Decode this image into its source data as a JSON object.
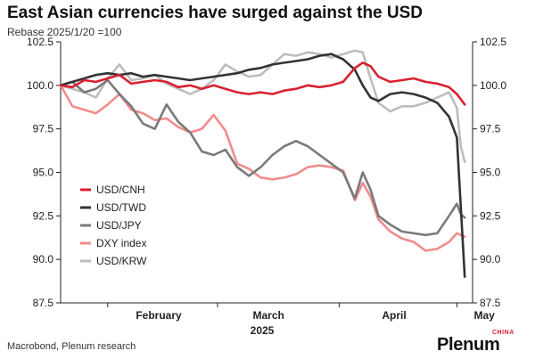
{
  "header": {
    "title": "East Asian currencies have surged against the USD",
    "subtitle": "Rebase 2025/1/20 =100"
  },
  "footer": {
    "source": "Macrobond, Plenum research",
    "logo_text": "Plenum",
    "logo_sup": "CHINA"
  },
  "colors": {
    "USD/CNH": "#d8212f",
    "USD/TWD": "#333333",
    "USD/JPY": "#7a7a7a",
    "DXY index": "#f08c8c",
    "USD/KRW": "#bdbdbd"
  },
  "chart_data": {
    "type": "line",
    "title": "East Asian currencies have surged against the USD",
    "subtitle": "Rebase 2025/1/20 =100",
    "xlabel": "2025",
    "ylabel": "",
    "xlim": [
      "2025-01-20",
      "2025-05-05"
    ],
    "ylim": [
      87.5,
      102.5
    ],
    "yticks": [
      "87.5",
      "90.0",
      "92.5",
      "95.0",
      "97.5",
      "100.0",
      "102.5"
    ],
    "month_labels": [
      {
        "label": "February",
        "date": "2025-02-14"
      },
      {
        "label": "March",
        "date": "2025-03-14"
      },
      {
        "label": "April",
        "date": "2025-04-15"
      },
      {
        "label": "May",
        "date": "2025-05-08"
      }
    ],
    "year_label": "2025",
    "dual_y_axis": true,
    "grid": false,
    "legend_position": "bottom-left",
    "series": [
      {
        "name": "USD/CNH",
        "points": [
          [
            "2025-01-20",
            100.0
          ],
          [
            "2025-01-23",
            99.9
          ],
          [
            "2025-01-26",
            100.3
          ],
          [
            "2025-01-29",
            100.2
          ],
          [
            "2025-02-01",
            100.4
          ],
          [
            "2025-02-04",
            100.6
          ],
          [
            "2025-02-07",
            100.1
          ],
          [
            "2025-02-10",
            100.2
          ],
          [
            "2025-02-13",
            100.3
          ],
          [
            "2025-02-16",
            100.2
          ],
          [
            "2025-02-19",
            99.9
          ],
          [
            "2025-02-22",
            100.0
          ],
          [
            "2025-02-25",
            99.8
          ],
          [
            "2025-02-28",
            100.0
          ],
          [
            "2025-03-03",
            99.8
          ],
          [
            "2025-03-06",
            99.6
          ],
          [
            "2025-03-09",
            99.5
          ],
          [
            "2025-03-12",
            99.6
          ],
          [
            "2025-03-15",
            99.5
          ],
          [
            "2025-03-18",
            99.7
          ],
          [
            "2025-03-21",
            99.8
          ],
          [
            "2025-03-24",
            100.0
          ],
          [
            "2025-03-27",
            99.9
          ],
          [
            "2025-03-30",
            100.0
          ],
          [
            "2025-04-02",
            100.2
          ],
          [
            "2025-04-05",
            101.0
          ],
          [
            "2025-04-07",
            101.3
          ],
          [
            "2025-04-09",
            101.1
          ],
          [
            "2025-04-11",
            100.5
          ],
          [
            "2025-04-14",
            100.2
          ],
          [
            "2025-04-17",
            100.3
          ],
          [
            "2025-04-20",
            100.4
          ],
          [
            "2025-04-23",
            100.2
          ],
          [
            "2025-04-26",
            100.1
          ],
          [
            "2025-04-29",
            99.9
          ],
          [
            "2025-05-01",
            99.5
          ],
          [
            "2025-05-02",
            99.2
          ],
          [
            "2025-05-03",
            98.9
          ]
        ]
      },
      {
        "name": "USD/TWD",
        "points": [
          [
            "2025-01-20",
            100.0
          ],
          [
            "2025-01-23",
            100.2
          ],
          [
            "2025-01-26",
            100.4
          ],
          [
            "2025-01-29",
            100.6
          ],
          [
            "2025-02-01",
            100.7
          ],
          [
            "2025-02-04",
            100.6
          ],
          [
            "2025-02-07",
            100.7
          ],
          [
            "2025-02-10",
            100.5
          ],
          [
            "2025-02-13",
            100.6
          ],
          [
            "2025-02-16",
            100.5
          ],
          [
            "2025-02-19",
            100.4
          ],
          [
            "2025-02-22",
            100.3
          ],
          [
            "2025-02-25",
            100.4
          ],
          [
            "2025-02-28",
            100.5
          ],
          [
            "2025-03-03",
            100.6
          ],
          [
            "2025-03-06",
            100.7
          ],
          [
            "2025-03-09",
            100.9
          ],
          [
            "2025-03-12",
            101.0
          ],
          [
            "2025-03-15",
            101.2
          ],
          [
            "2025-03-18",
            101.3
          ],
          [
            "2025-03-21",
            101.4
          ],
          [
            "2025-03-24",
            101.5
          ],
          [
            "2025-03-27",
            101.7
          ],
          [
            "2025-03-30",
            101.8
          ],
          [
            "2025-04-02",
            101.5
          ],
          [
            "2025-04-05",
            100.9
          ],
          [
            "2025-04-07",
            100.0
          ],
          [
            "2025-04-09",
            99.3
          ],
          [
            "2025-04-11",
            99.1
          ],
          [
            "2025-04-14",
            99.5
          ],
          [
            "2025-04-17",
            99.6
          ],
          [
            "2025-04-20",
            99.5
          ],
          [
            "2025-04-23",
            99.3
          ],
          [
            "2025-04-26",
            99.0
          ],
          [
            "2025-04-29",
            98.2
          ],
          [
            "2025-05-01",
            97.0
          ],
          [
            "2025-05-02",
            93.0
          ],
          [
            "2025-05-03",
            89.0
          ]
        ]
      },
      {
        "name": "USD/JPY",
        "points": [
          [
            "2025-01-20",
            100.0
          ],
          [
            "2025-01-23",
            100.2
          ],
          [
            "2025-01-26",
            99.6
          ],
          [
            "2025-01-29",
            99.8
          ],
          [
            "2025-02-01",
            100.3
          ],
          [
            "2025-02-04",
            99.5
          ],
          [
            "2025-02-07",
            98.8
          ],
          [
            "2025-02-10",
            97.8
          ],
          [
            "2025-02-13",
            97.5
          ],
          [
            "2025-02-16",
            98.9
          ],
          [
            "2025-02-19",
            97.9
          ],
          [
            "2025-02-22",
            97.3
          ],
          [
            "2025-02-25",
            96.2
          ],
          [
            "2025-02-28",
            96.0
          ],
          [
            "2025-03-03",
            96.3
          ],
          [
            "2025-03-06",
            95.3
          ],
          [
            "2025-03-09",
            94.8
          ],
          [
            "2025-03-12",
            95.3
          ],
          [
            "2025-03-15",
            96.0
          ],
          [
            "2025-03-18",
            96.5
          ],
          [
            "2025-03-21",
            96.8
          ],
          [
            "2025-03-24",
            96.5
          ],
          [
            "2025-03-27",
            96.0
          ],
          [
            "2025-03-30",
            95.5
          ],
          [
            "2025-04-02",
            95.0
          ],
          [
            "2025-04-05",
            93.5
          ],
          [
            "2025-04-07",
            95.0
          ],
          [
            "2025-04-09",
            94.0
          ],
          [
            "2025-04-11",
            92.5
          ],
          [
            "2025-04-14",
            92.0
          ],
          [
            "2025-04-17",
            91.6
          ],
          [
            "2025-04-20",
            91.5
          ],
          [
            "2025-04-23",
            91.4
          ],
          [
            "2025-04-26",
            91.5
          ],
          [
            "2025-04-29",
            92.5
          ],
          [
            "2025-05-01",
            93.2
          ],
          [
            "2025-05-02",
            92.6
          ],
          [
            "2025-05-03",
            92.4
          ]
        ]
      },
      {
        "name": "DXY index",
        "points": [
          [
            "2025-01-20",
            100.0
          ],
          [
            "2025-01-23",
            98.8
          ],
          [
            "2025-01-26",
            98.6
          ],
          [
            "2025-01-29",
            98.4
          ],
          [
            "2025-02-01",
            98.9
          ],
          [
            "2025-02-04",
            99.5
          ],
          [
            "2025-02-07",
            98.6
          ],
          [
            "2025-02-10",
            98.4
          ],
          [
            "2025-02-13",
            98.0
          ],
          [
            "2025-02-16",
            98.1
          ],
          [
            "2025-02-19",
            97.6
          ],
          [
            "2025-02-22",
            97.3
          ],
          [
            "2025-02-25",
            97.5
          ],
          [
            "2025-02-28",
            98.3
          ],
          [
            "2025-03-03",
            97.4
          ],
          [
            "2025-03-06",
            95.5
          ],
          [
            "2025-03-09",
            95.2
          ],
          [
            "2025-03-12",
            94.7
          ],
          [
            "2025-03-15",
            94.6
          ],
          [
            "2025-03-18",
            94.7
          ],
          [
            "2025-03-21",
            94.9
          ],
          [
            "2025-03-24",
            95.3
          ],
          [
            "2025-03-27",
            95.4
          ],
          [
            "2025-03-30",
            95.3
          ],
          [
            "2025-04-02",
            95.1
          ],
          [
            "2025-04-05",
            93.4
          ],
          [
            "2025-04-07",
            94.4
          ],
          [
            "2025-04-09",
            93.6
          ],
          [
            "2025-04-11",
            92.3
          ],
          [
            "2025-04-14",
            91.6
          ],
          [
            "2025-04-17",
            91.2
          ],
          [
            "2025-04-20",
            91.0
          ],
          [
            "2025-04-23",
            90.5
          ],
          [
            "2025-04-26",
            90.6
          ],
          [
            "2025-04-29",
            91.0
          ],
          [
            "2025-05-01",
            91.5
          ],
          [
            "2025-05-02",
            91.4
          ],
          [
            "2025-05-03",
            91.3
          ]
        ]
      },
      {
        "name": "USD/KRW",
        "points": [
          [
            "2025-01-20",
            100.0
          ],
          [
            "2025-01-23",
            99.8
          ],
          [
            "2025-01-26",
            99.6
          ],
          [
            "2025-01-29",
            99.3
          ],
          [
            "2025-02-01",
            100.4
          ],
          [
            "2025-02-04",
            101.2
          ],
          [
            "2025-02-07",
            100.3
          ],
          [
            "2025-02-10",
            100.4
          ],
          [
            "2025-02-13",
            100.6
          ],
          [
            "2025-02-16",
            100.1
          ],
          [
            "2025-02-19",
            99.8
          ],
          [
            "2025-02-22",
            99.5
          ],
          [
            "2025-02-25",
            99.8
          ],
          [
            "2025-02-28",
            100.3
          ],
          [
            "2025-03-03",
            101.2
          ],
          [
            "2025-03-06",
            100.8
          ],
          [
            "2025-03-09",
            100.5
          ],
          [
            "2025-03-12",
            100.6
          ],
          [
            "2025-03-15",
            101.2
          ],
          [
            "2025-03-18",
            101.8
          ],
          [
            "2025-03-21",
            101.7
          ],
          [
            "2025-03-24",
            101.9
          ],
          [
            "2025-03-27",
            101.8
          ],
          [
            "2025-03-30",
            101.6
          ],
          [
            "2025-04-02",
            101.8
          ],
          [
            "2025-04-05",
            102.0
          ],
          [
            "2025-04-07",
            101.9
          ],
          [
            "2025-04-09",
            100.4
          ],
          [
            "2025-04-11",
            99.0
          ],
          [
            "2025-04-14",
            98.5
          ],
          [
            "2025-04-17",
            98.8
          ],
          [
            "2025-04-20",
            98.8
          ],
          [
            "2025-04-23",
            99.0
          ],
          [
            "2025-04-26",
            99.3
          ],
          [
            "2025-04-29",
            99.6
          ],
          [
            "2025-05-01",
            98.7
          ],
          [
            "2025-05-02",
            96.5
          ],
          [
            "2025-05-03",
            95.6
          ]
        ]
      }
    ]
  }
}
